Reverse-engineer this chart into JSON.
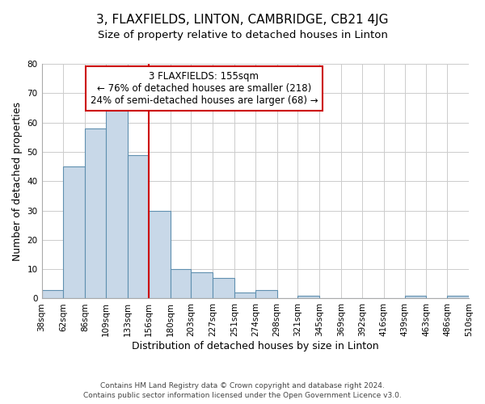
{
  "title": "3, FLAXFIELDS, LINTON, CAMBRIDGE, CB21 4JG",
  "subtitle": "Size of property relative to detached houses in Linton",
  "xlabel": "Distribution of detached houses by size in Linton",
  "ylabel": "Number of detached properties",
  "footer_lines": [
    "Contains HM Land Registry data © Crown copyright and database right 2024.",
    "Contains public sector information licensed under the Open Government Licence v3.0."
  ],
  "bin_edges": [
    38,
    62,
    86,
    109,
    133,
    156,
    180,
    203,
    227,
    251,
    274,
    298,
    321,
    345,
    369,
    392,
    416,
    439,
    463,
    486,
    510
  ],
  "bin_labels": [
    "38sqm",
    "62sqm",
    "86sqm",
    "109sqm",
    "133sqm",
    "156sqm",
    "180sqm",
    "203sqm",
    "227sqm",
    "251sqm",
    "274sqm",
    "298sqm",
    "321sqm",
    "345sqm",
    "369sqm",
    "392sqm",
    "416sqm",
    "439sqm",
    "463sqm",
    "486sqm",
    "510sqm"
  ],
  "counts": [
    3,
    45,
    58,
    66,
    49,
    30,
    10,
    9,
    7,
    2,
    3,
    0,
    1,
    0,
    0,
    0,
    0,
    1,
    0,
    1
  ],
  "bar_color": "#c8d8e8",
  "bar_edge_color": "#6090b0",
  "vline_x": 156,
  "vline_color": "#cc0000",
  "annotation_box_text": "3 FLAXFIELDS: 155sqm\n← 76% of detached houses are smaller (218)\n24% of semi-detached houses are larger (68) →",
  "annotation_box_color": "#cc0000",
  "annotation_box_fill": "#ffffff",
  "ylim": [
    0,
    80
  ],
  "yticks": [
    0,
    10,
    20,
    30,
    40,
    50,
    60,
    70,
    80
  ],
  "grid_color": "#cccccc",
  "background_color": "#ffffff",
  "title_fontsize": 11,
  "subtitle_fontsize": 9.5,
  "label_fontsize": 9,
  "tick_fontsize": 7.5,
  "footer_fontsize": 6.5,
  "annot_fontsize": 8.5
}
